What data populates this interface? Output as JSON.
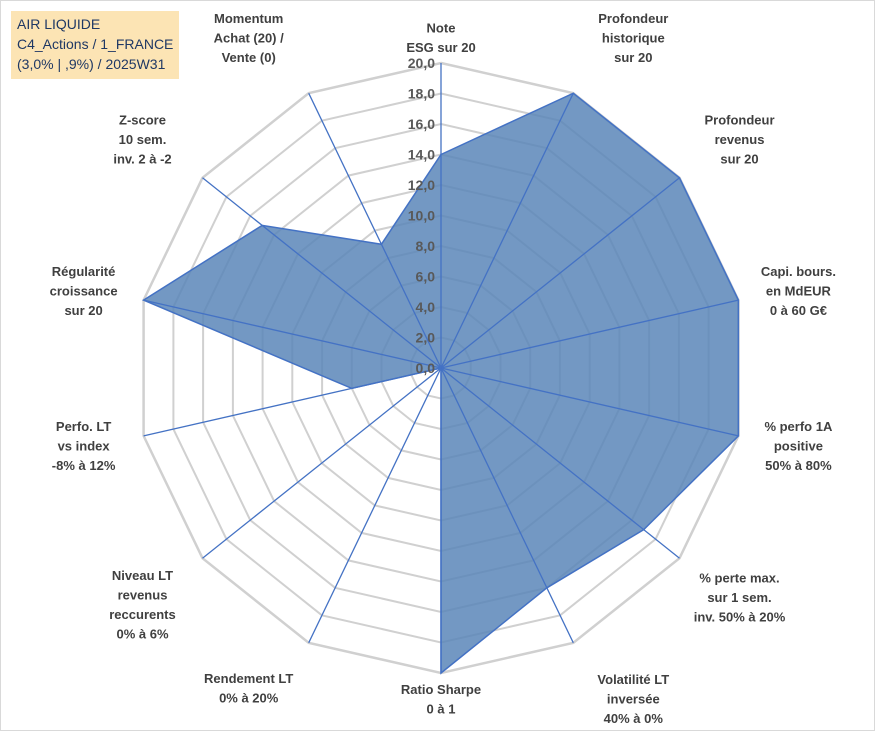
{
  "header": {
    "line1": "AIR LIQUIDE",
    "line2": "C4_Actions / 1_FRANCE",
    "line3": "(3,0% | ,9%) / 2025W31"
  },
  "chart_data": {
    "type": "radar",
    "rmin": 0,
    "rmax": 20,
    "step": 2,
    "tick_labels": [
      "0,0",
      "2,0",
      "4,0",
      "6,0",
      "8,0",
      "10,0",
      "12,0",
      "14,0",
      "16,0",
      "18,0",
      "20,0"
    ],
    "categories": [
      [
        "Note",
        "ESG sur 20"
      ],
      [
        "Profondeur",
        "historique",
        "sur 20"
      ],
      [
        "Profondeur",
        "revenus",
        "sur 20"
      ],
      [
        "Capi. bours.",
        "en MdEUR",
        "0 à 60 G€"
      ],
      [
        "% perfo 1A",
        "positive",
        "50% à 80%"
      ],
      [
        "% perte max.",
        "sur 1 sem.",
        "inv. 50% à 20%"
      ],
      [
        "Volatilité LT",
        "inversée",
        "40% à 0%"
      ],
      [
        "Ratio Sharpe",
        "0 à 1"
      ],
      [
        "Rendement LT",
        "0% à 20%"
      ],
      [
        "Niveau LT",
        "revenus",
        "reccurents",
        "0% à 6%"
      ],
      [
        "Perfo. LT",
        "vs index",
        "-8% à 12%"
      ],
      [
        "Régularité",
        "croissance",
        "sur 20"
      ],
      [
        "Z-score",
        "10 sem.",
        "inv. 2 à -2"
      ],
      [
        "Momentum",
        "Achat (20) /",
        "Vente (0)"
      ]
    ],
    "values": [
      14.0,
      20.0,
      20.0,
      20.0,
      20.0,
      17.0,
      16.0,
      20.0,
      0.0,
      0.0,
      6.0,
      20.0,
      15.0,
      9.0
    ],
    "grid": true,
    "colors": {
      "fill": "#5b86b8",
      "stroke": "#4472c4",
      "spoke": "#4472c4",
      "gridline": "#d0d0d0"
    }
  }
}
